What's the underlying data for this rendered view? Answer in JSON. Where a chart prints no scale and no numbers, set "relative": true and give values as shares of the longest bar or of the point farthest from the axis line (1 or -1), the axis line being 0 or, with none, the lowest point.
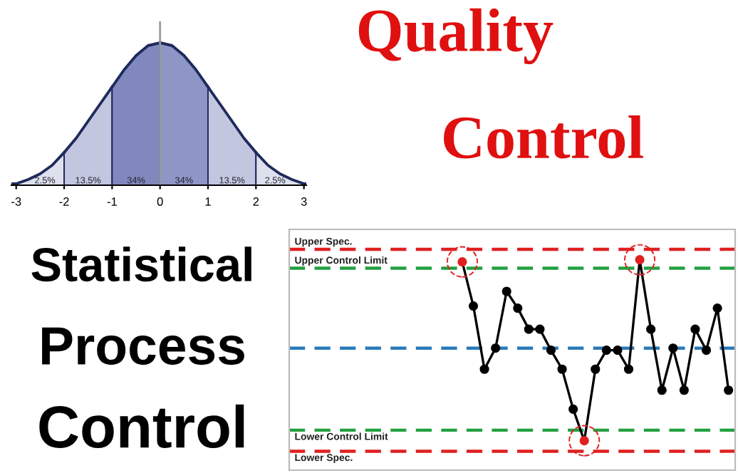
{
  "chart_data": [
    {
      "type": "area",
      "relative": true,
      "series": [
        {
          "color": "#dfe0ee",
          "x": [
            -3.1,
            -3,
            -2.75,
            -2.5,
            -2.25,
            -2
          ],
          "values": [
            0.01,
            0.01,
            0.04,
            0.08,
            0.14,
            0.23
          ]
        },
        {
          "color": "#c3c6df",
          "x": [
            -2,
            -1.75,
            -1.5,
            -1.25,
            -1
          ],
          "values": [
            0.23,
            0.33,
            0.45,
            0.57,
            0.69
          ]
        },
        {
          "color": "#8088bd",
          "x": [
            -1,
            -0.75,
            -0.5,
            -0.25,
            0
          ],
          "values": [
            0.69,
            0.81,
            0.91,
            0.98,
            1
          ]
        },
        {
          "color": "#8e96c6",
          "x": [
            0,
            0.25,
            0.5,
            0.75,
            1
          ],
          "values": [
            1,
            0.98,
            0.91,
            0.81,
            0.69
          ]
        },
        {
          "color": "#c3c6df",
          "x": [
            1,
            1.25,
            1.5,
            1.75,
            2
          ],
          "values": [
            0.69,
            0.57,
            0.45,
            0.33,
            0.23
          ]
        },
        {
          "color": "#dfe0ee",
          "x": [
            2,
            2.25,
            2.5,
            2.75,
            3,
            3.05
          ],
          "values": [
            0.23,
            0.14,
            0.08,
            0.04,
            0.01,
            0.01
          ]
        }
      ],
      "xlim": [
        -3.1,
        3.05
      ],
      "xticks": [
        -3,
        -2,
        -1,
        0,
        1,
        2,
        3
      ],
      "tick_labels": "x",
      "annotations": [
        {
          "text": "2.5%",
          "x": -2.4,
          "y": 0
        },
        {
          "text": "13.5%",
          "x": -1.5,
          "y": 0
        },
        {
          "text": "34%",
          "x": -0.5,
          "y": 0
        },
        {
          "text": "34%",
          "x": 0.5,
          "y": 0
        },
        {
          "text": "13.5%",
          "x": 1.5,
          "y": 0
        },
        {
          "text": "2.5%",
          "x": 2.4,
          "y": 0
        }
      ],
      "ref_lines": [
        {
          "axis": "x",
          "value": 0,
          "color": "#9a9a9a"
        }
      ]
    },
    {
      "type": "other",
      "annotations": [
        "Quality",
        "Control"
      ]
    },
    {
      "type": "other",
      "annotations": [
        "Statistical",
        "Process",
        "Control"
      ]
    },
    {
      "type": "line",
      "relative": true,
      "marker": "circle",
      "categories": [
        null,
        null,
        null,
        null,
        null,
        null,
        null,
        null,
        null,
        null,
        null,
        null,
        null,
        null,
        null,
        null,
        null,
        null,
        null,
        null,
        null,
        null,
        null,
        null,
        null,
        null,
        null,
        null,
        null,
        null,
        null,
        null,
        null,
        null,
        null,
        null,
        null,
        null,
        null,
        null
      ],
      "series": [
        {
          "color": "#000000",
          "values": [
            null,
            null,
            null,
            null,
            null,
            null,
            null,
            null,
            null,
            null,
            null,
            null,
            null,
            null,
            null,
            0.99,
            0.78,
            0.48,
            0.58,
            0.85,
            0.77,
            0.67,
            0.67,
            0.57,
            0.48,
            0.29,
            0.14,
            0.48,
            0.57,
            0.57,
            0.48,
            1,
            0.67,
            0.38,
            0.58,
            0.38,
            0.67,
            0.57,
            0.77,
            0.38
          ],
          "colors": [
            null,
            null,
            null,
            null,
            null,
            null,
            null,
            null,
            null,
            null,
            null,
            null,
            null,
            null,
            null,
            "#e02020",
            "#000000",
            "#000000",
            "#000000",
            "#000000",
            "#000000",
            "#000000",
            "#000000",
            "#000000",
            "#000000",
            "#000000",
            "#e02020",
            "#000000",
            "#000000",
            "#000000",
            "#000000",
            "#e02020",
            "#000000",
            "#000000",
            "#000000",
            "#000000",
            "#000000",
            "#000000",
            "#000000",
            "#000000"
          ]
        }
      ],
      "ref_lines": [
        {
          "axis": "y",
          "value": 1.05,
          "label": "Upper Spec.",
          "color": "#e02020",
          "line_style": "dashed"
        },
        {
          "axis": "y",
          "value": 0.96,
          "label": "Upper Control Limit",
          "color": "#22a040",
          "line_style": "dashed"
        },
        {
          "axis": "y",
          "value": 0.58,
          "color": "#2a7ab8",
          "line_style": "dashed"
        },
        {
          "axis": "y",
          "value": 0.19,
          "label": "Lower Control Limit",
          "color": "#22a040",
          "line_style": "dashed"
        },
        {
          "axis": "y",
          "value": 0.09,
          "label": "Lower Spec.",
          "color": "#e02020",
          "line_style": "dashed"
        }
      ]
    }
  ]
}
